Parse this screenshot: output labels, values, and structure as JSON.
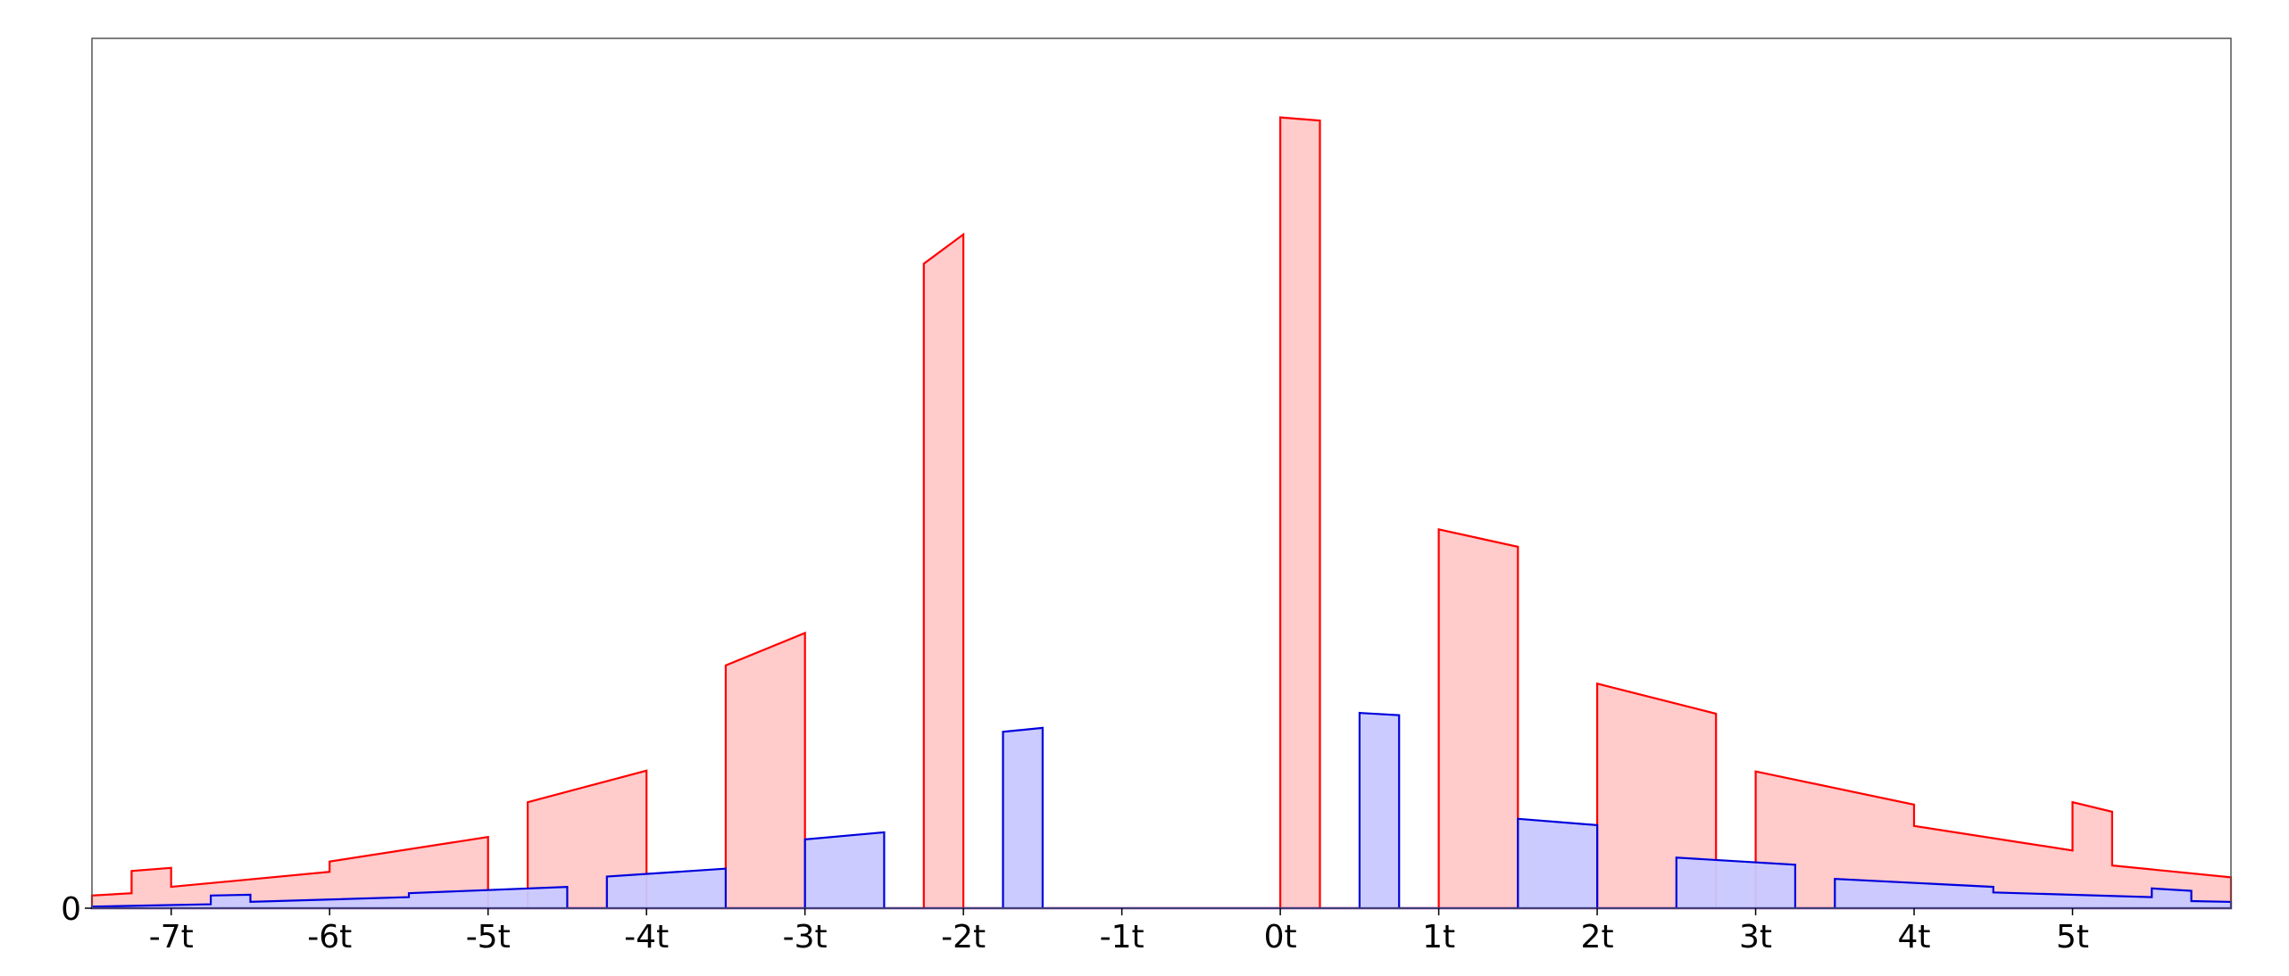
{
  "chart_data": {
    "type": "area",
    "title": "",
    "xlabel": "",
    "ylabel": "",
    "xlim": [
      -7.5,
      6
    ],
    "ylim": [
      0,
      1.1
    ],
    "x_ticks": [
      {
        "value": -7,
        "label": "-7t"
      },
      {
        "value": -6,
        "label": "-6t"
      },
      {
        "value": -5,
        "label": "-5t"
      },
      {
        "value": -4,
        "label": "-4t"
      },
      {
        "value": -3,
        "label": "-3t"
      },
      {
        "value": -2,
        "label": "-2t"
      },
      {
        "value": -1,
        "label": "-1t"
      },
      {
        "value": 0,
        "label": "0t"
      },
      {
        "value": 1,
        "label": "1t"
      },
      {
        "value": 2,
        "label": "2t"
      },
      {
        "value": 3,
        "label": "3t"
      },
      {
        "value": 4,
        "label": "4t"
      },
      {
        "value": 5,
        "label": "5t"
      }
    ],
    "y_ticks": [
      {
        "value": 0,
        "label": "0"
      }
    ],
    "grid": false,
    "series": [
      {
        "color": "#ff0000",
        "fill": "#ffc8c8",
        "points": [
          [
            -7.5,
            0
          ],
          [
            -7.5,
            0.016
          ],
          [
            -7.25,
            0.019
          ],
          [
            -7.25,
            0.047
          ],
          [
            -7.0,
            0.051
          ],
          [
            -7.0,
            0.027
          ],
          [
            -6.0,
            0.046
          ],
          [
            -6.0,
            0.059
          ],
          [
            -5.0,
            0.09
          ],
          [
            -5.0,
            0
          ],
          [
            -4.75,
            0
          ],
          [
            -4.75,
            0.134
          ],
          [
            -4.0,
            0.174
          ],
          [
            -4.0,
            0
          ],
          [
            -3.5,
            0
          ],
          [
            -3.5,
            0.307
          ],
          [
            -3.0,
            0.348
          ],
          [
            -3.0,
            0
          ],
          [
            -2.25,
            0
          ],
          [
            -2.25,
            0.815
          ],
          [
            -2.0,
            0.852
          ],
          [
            -2.0,
            0
          ],
          [
            0.0,
            0
          ],
          [
            0.0,
            1.0
          ],
          [
            0.25,
            0.996
          ],
          [
            0.25,
            0
          ],
          [
            1.0,
            0
          ],
          [
            1.0,
            0.479
          ],
          [
            1.5,
            0.457
          ],
          [
            1.5,
            0
          ],
          [
            2.0,
            0
          ],
          [
            2.0,
            0.284
          ],
          [
            2.75,
            0.246
          ],
          [
            2.75,
            0
          ],
          [
            3.0,
            0
          ],
          [
            3.0,
            0.173
          ],
          [
            4.0,
            0.131
          ],
          [
            4.0,
            0.104
          ],
          [
            5.0,
            0.073
          ],
          [
            5.0,
            0.134
          ],
          [
            5.25,
            0.122
          ],
          [
            5.25,
            0.054
          ],
          [
            6.0,
            0.039
          ],
          [
            6.0,
            0
          ]
        ]
      },
      {
        "color": "#0000dd",
        "fill": "#c8c8ff",
        "points": [
          [
            -7.5,
            0
          ],
          [
            -7.5,
            0.002
          ],
          [
            -6.75,
            0.005
          ],
          [
            -6.75,
            0.016
          ],
          [
            -6.5,
            0.017
          ],
          [
            -6.5,
            0.008
          ],
          [
            -5.5,
            0.014
          ],
          [
            -5.5,
            0.019
          ],
          [
            -4.5,
            0.027
          ],
          [
            -4.5,
            0
          ],
          [
            -4.25,
            0
          ],
          [
            -4.25,
            0.04
          ],
          [
            -3.5,
            0.05
          ],
          [
            -3.5,
            0
          ],
          [
            -3.0,
            0
          ],
          [
            -3.0,
            0.087
          ],
          [
            -2.5,
            0.096
          ],
          [
            -2.5,
            0
          ],
          [
            -1.75,
            0
          ],
          [
            -1.75,
            0.223
          ],
          [
            -1.5,
            0.228
          ],
          [
            -1.5,
            0
          ],
          [
            0.5,
            0
          ],
          [
            0.5,
            0.247
          ],
          [
            0.75,
            0.244
          ],
          [
            0.75,
            0
          ],
          [
            1.5,
            0
          ],
          [
            1.5,
            0.113
          ],
          [
            2.0,
            0.105
          ],
          [
            2.0,
            0
          ],
          [
            2.5,
            0
          ],
          [
            2.5,
            0.064
          ],
          [
            3.25,
            0.055
          ],
          [
            3.25,
            0
          ],
          [
            3.5,
            0
          ],
          [
            3.5,
            0.037
          ],
          [
            4.5,
            0.027
          ],
          [
            4.5,
            0.02
          ],
          [
            5.5,
            0.014
          ],
          [
            5.5,
            0.025
          ],
          [
            5.75,
            0.022
          ],
          [
            5.75,
            0.009
          ],
          [
            6.0,
            0.008
          ],
          [
            6.0,
            0
          ]
        ]
      }
    ]
  }
}
